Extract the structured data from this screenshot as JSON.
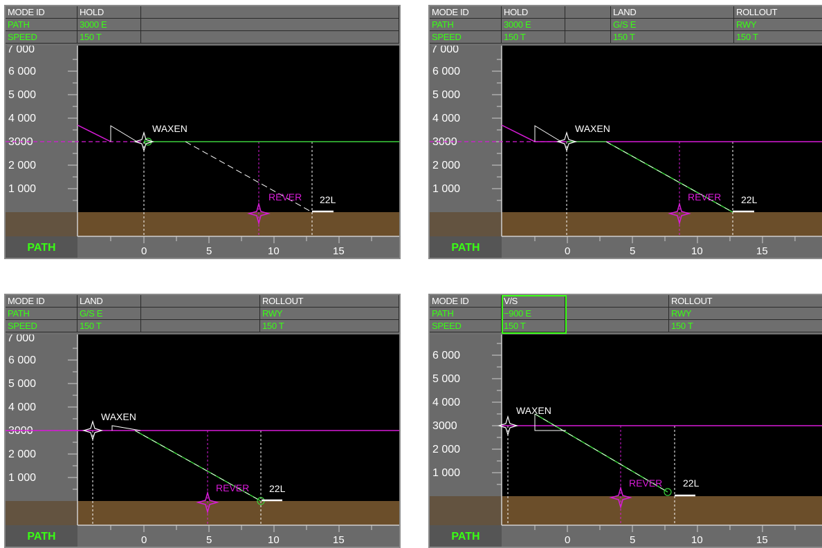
{
  "panels": [
    {
      "id": "p1",
      "header": {
        "row_labels": [
          "MODE ID",
          "PATH",
          "SPEED"
        ],
        "col1": [
          "HOLD",
          "3000 E",
          "150 T"
        ],
        "col2": [
          "",
          "",
          ""
        ],
        "col3": [
          "",
          "",
          ""
        ],
        "col4": [
          "",
          "",
          ""
        ]
      },
      "footer_label": "PATH",
      "y_ticks": [
        "6 000",
        "5 000",
        "4 000",
        "3000",
        "2 000",
        "1 000"
      ],
      "y_top_partial": "7 000",
      "x_ticks": [
        "0",
        "5",
        "10",
        "15"
      ],
      "waypoint": "WAXEN",
      "fix": "REVER",
      "runway": "22L"
    },
    {
      "id": "p2",
      "header": {
        "row_labels": [
          "MODE ID",
          "PATH",
          "SPEED"
        ],
        "col1": [
          "HOLD",
          "3000 E",
          "150 T"
        ],
        "col2": [
          "",
          "",
          ""
        ],
        "col3": [
          "LAND",
          "G/S  E",
          "150 T"
        ],
        "col4": [
          "ROLLOUT",
          "RWY",
          "150 T"
        ]
      },
      "footer_label": "PATH",
      "y_ticks": [
        "6 000",
        "5 000",
        "4 000",
        "3000",
        "2 000",
        "1 000"
      ],
      "y_top_partial": "7 000",
      "x_ticks": [
        "0",
        "5",
        "10",
        "15"
      ],
      "waypoint": "WAXEN",
      "fix": "REVER",
      "runway": "22L"
    },
    {
      "id": "p3",
      "header": {
        "row_labels": [
          "MODE ID",
          "PATH",
          "SPEED"
        ],
        "col1": [
          "LAND",
          "G/S  E",
          "150 T"
        ],
        "col2": [
          "",
          "",
          ""
        ],
        "col3": [
          "ROLLOUT",
          "RWY",
          "150 T"
        ],
        "col4": [
          "",
          "",
          ""
        ]
      },
      "footer_label": "PATH",
      "y_ticks": [
        "6 000",
        "5 000",
        "4 000",
        "3000",
        "2 000",
        "1 000"
      ],
      "y_top_partial": "7 000",
      "x_ticks": [
        "0",
        "5",
        "10",
        "15"
      ],
      "waypoint": "WAXEN",
      "fix": "REVER",
      "runway": "22L"
    },
    {
      "id": "p4",
      "header": {
        "row_labels": [
          "MODE ID",
          "PATH",
          "SPEED"
        ],
        "col1": [
          "V/S",
          "−900 E",
          "150 T"
        ],
        "col2": [
          "",
          "",
          ""
        ],
        "col3": [
          "ROLLOUT",
          "RWY",
          "150 T"
        ],
        "col4": [
          "",
          "",
          ""
        ]
      },
      "footer_label": "PATH",
      "y_ticks": [
        "6 000",
        "5 000",
        "4 000",
        "3000",
        "2 000",
        "1 000"
      ],
      "y_top_partial": "",
      "x_ticks": [
        "0",
        "5",
        "10",
        "15"
      ],
      "waypoint": "WAXEN",
      "fix": "REVER",
      "runway": "22L"
    }
  ],
  "colors": {
    "magenta": "#d81bd8",
    "green": "#3cd23c",
    "ground": "#6b4e2a",
    "white": "#ffffff"
  }
}
